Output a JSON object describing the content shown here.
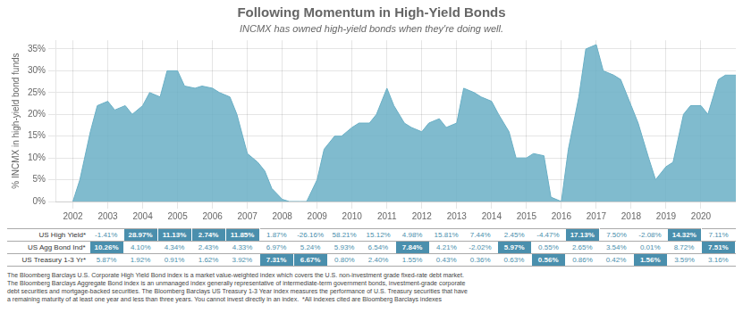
{
  "chart_data": {
    "type": "area",
    "title": "Following Momentum in High-Yield Bonds",
    "subtitle": "INCMX has owned high-yield bonds when they're doing well.",
    "ylabel": "% INCMX in high-yield bond funds",
    "color": "#6aafc5",
    "grid": true,
    "x": [
      2002.0,
      2002.2,
      2002.5,
      2002.7,
      2003.0,
      2003.2,
      2003.5,
      2003.7,
      2004.0,
      2004.2,
      2004.5,
      2004.7,
      2005.0,
      2005.2,
      2005.5,
      2005.7,
      2006.0,
      2006.2,
      2006.5,
      2006.7,
      2007.0,
      2007.3,
      2007.5,
      2007.7,
      2008.0,
      2008.2,
      2008.5,
      2008.7,
      2009.0,
      2009.2,
      2009.5,
      2009.7,
      2010.0,
      2010.2,
      2010.5,
      2010.7,
      2011.0,
      2011.2,
      2011.5,
      2011.7,
      2012.0,
      2012.2,
      2012.5,
      2012.7,
      2013.0,
      2013.2,
      2013.5,
      2013.7,
      2014.0,
      2014.2,
      2014.5,
      2014.7,
      2015.0,
      2015.2,
      2015.5,
      2015.7,
      2016.0,
      2016.2,
      2016.5,
      2016.7,
      2017.0,
      2017.2,
      2017.5,
      2017.7,
      2018.0,
      2018.2,
      2018.5,
      2018.7,
      2019.0,
      2019.2,
      2019.5,
      2019.7,
      2020.0,
      2020.2,
      2020.5,
      2020.7,
      2021.0
    ],
    "values": [
      0.0,
      5.0,
      16.0,
      22.0,
      23.0,
      21.0,
      22.0,
      20.0,
      22.0,
      25.0,
      24.0,
      30.0,
      30.0,
      26.5,
      26.0,
      26.5,
      26.0,
      25.0,
      24.0,
      20.0,
      11.0,
      9.0,
      7.0,
      3.0,
      0.5,
      0.0,
      0.0,
      0.0,
      5.0,
      12.0,
      15.0,
      15.0,
      17.0,
      18.0,
      18.0,
      20.0,
      26.0,
      22.0,
      18.0,
      17.0,
      16.0,
      18.0,
      19.0,
      17.0,
      18.0,
      26.0,
      25.0,
      24.0,
      23.0,
      20.0,
      16.0,
      10.0,
      10.0,
      11.0,
      10.5,
      1.0,
      0.0,
      12.0,
      24.0,
      35.0,
      36.0,
      30.0,
      29.0,
      28.0,
      22.0,
      18.0,
      10.0,
      5.0,
      8.0,
      9.0,
      20.0,
      22.0,
      22.0,
      20.0,
      28.0,
      29.0,
      29.0
    ],
    "xlim": [
      2001.5,
      2021.0
    ],
    "xticks": [
      2002,
      2003,
      2004,
      2005,
      2006,
      2007,
      2008,
      2009,
      2010,
      2011,
      2012,
      2013,
      2014,
      2015,
      2016,
      2017,
      2018,
      2019,
      2020
    ],
    "ylim": [
      0,
      37
    ],
    "yticks": [
      {
        "value": 0,
        "label": "0%"
      },
      {
        "value": 5,
        "label": "5%"
      },
      {
        "value": 10,
        "label": "10%"
      },
      {
        "value": 15,
        "label": "15%"
      },
      {
        "value": 20,
        "label": "20%"
      },
      {
        "value": 25,
        "label": "25%"
      },
      {
        "value": 30,
        "label": "30%"
      },
      {
        "value": 35,
        "label": "35%"
      }
    ],
    "table": {
      "color": "#4a8fad",
      "rows": [
        {
          "label": "US High Yield*",
          "values": [
            "-1.41%",
            "28.97%",
            "11.13%",
            "2.74%",
            "11.85%",
            "1.87%",
            "-26.16%",
            "58.21%",
            "15.12%",
            "4.98%",
            "15.81%",
            "7.44%",
            "2.45%",
            "-4.47%",
            "17.13%",
            "7.50%",
            "-2.08%",
            "14.32%",
            "7.11%"
          ],
          "highlighted": [
            1,
            2,
            3,
            4,
            14,
            17
          ]
        },
        {
          "label": "US Agg Bond Ind*",
          "values": [
            "10.26%",
            "4.10%",
            "4.34%",
            "2.43%",
            "4.33%",
            "6.97%",
            "5.24%",
            "5.93%",
            "6.54%",
            "7.84%",
            "4.21%",
            "-2.02%",
            "5.97%",
            "0.55%",
            "2.65%",
            "3.54%",
            "0.01%",
            "8.72%",
            "7.51%"
          ],
          "highlighted": [
            0,
            9,
            12,
            18
          ]
        },
        {
          "label": "US Treasury 1-3 Yr*",
          "values": [
            "5.87%",
            "1.92%",
            "0.91%",
            "1.62%",
            "3.92%",
            "7.31%",
            "6.67%",
            "0.80%",
            "2.40%",
            "1.55%",
            "0.43%",
            "0.36%",
            "0.63%",
            "0.56%",
            "0.86%",
            "0.42%",
            "1.56%",
            "3.59%",
            "3.16%"
          ],
          "highlighted": [
            5,
            6,
            13,
            16
          ]
        }
      ]
    },
    "footnote": "The Bloomberg Barclays U.S. Corporate High Yield Bond index is a market value-weighted index which covers the U.S. non-investment grade fixed-rate debt market.\nThe Bloomberg Barclays Aggregate Bond index is an unmanaged index generally representative of intermediate-term government bonds, investment-grade corporate\ndebt securities and mortgage-backed securities. The Bloomberg Barclays US Treasury 1-3 Year index measures the performance of U.S. Treasury securities that have\na remaining maturity of at least one year and less than three years. You cannot invest directly in an index.  *All indexes cited are Bloomberg Barclays indexes"
  }
}
